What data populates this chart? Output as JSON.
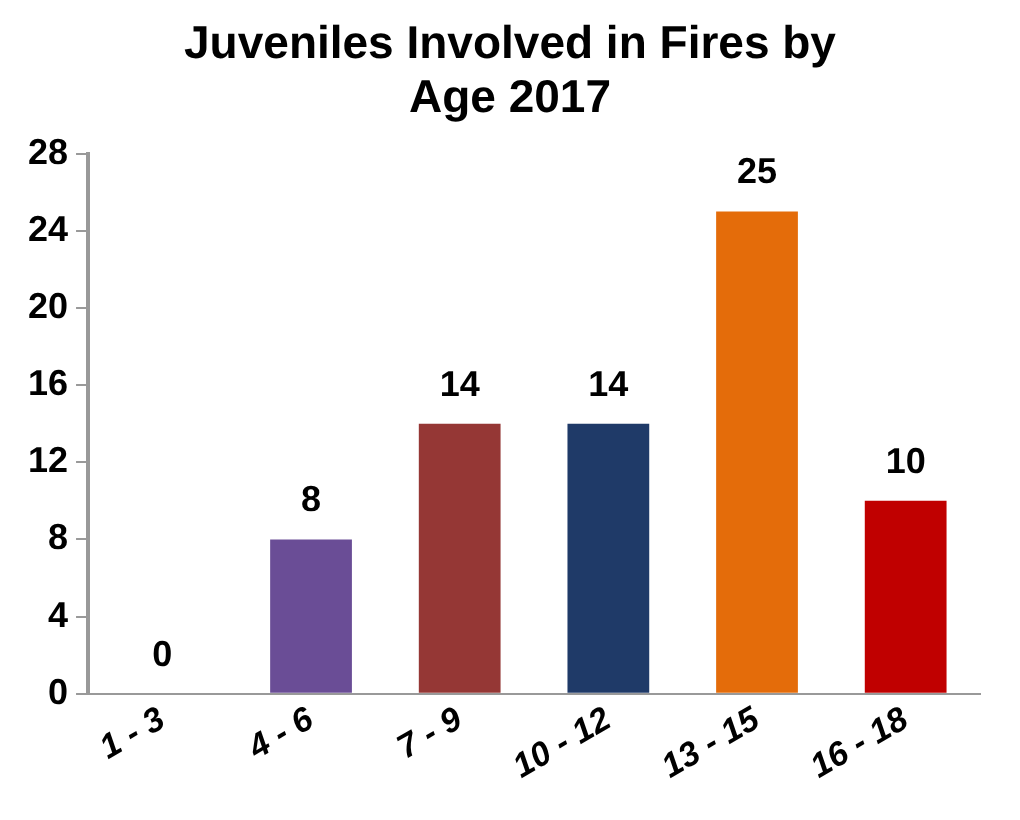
{
  "chart_data": {
    "type": "bar",
    "title": "Juveniles Involved in Fires by Age 2017",
    "categories": [
      "1 - 3",
      "4 - 6",
      "7 - 9",
      "10 - 12",
      "13 - 15",
      "16 - 18"
    ],
    "values": [
      0,
      8,
      14,
      14,
      25,
      10
    ],
    "colors": [
      "#4f6228",
      "#6a4d96",
      "#953735",
      "#1f3a68",
      "#e46c0a",
      "#c00000"
    ],
    "ylim": [
      0,
      28
    ],
    "yticks": [
      0,
      4,
      8,
      12,
      16,
      20,
      24,
      28
    ],
    "grid": false,
    "legend": false,
    "data_labels": true
  }
}
